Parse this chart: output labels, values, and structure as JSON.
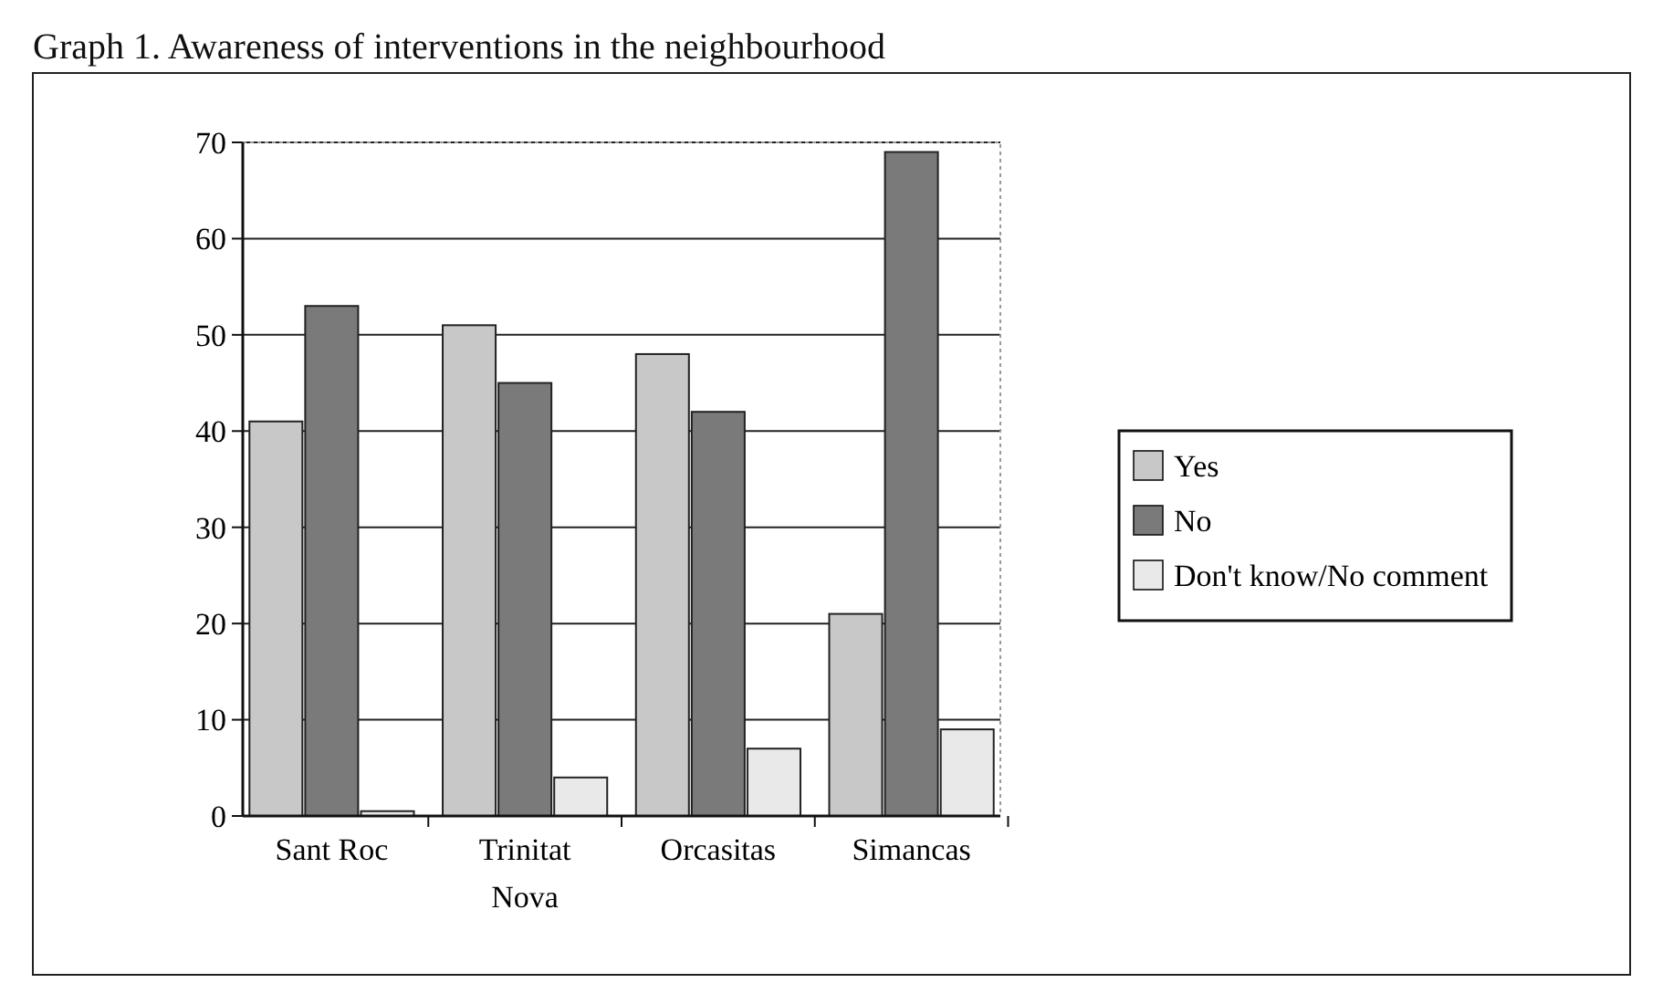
{
  "chart_data": {
    "type": "bar",
    "title": "Graph 1. Awareness of interventions in the neighbourhood",
    "categories": [
      "Sant Roc",
      "Trinitat\nNova",
      "Orcasitas",
      "Simancas"
    ],
    "series": [
      {
        "name": "Yes",
        "color": "#c8c8c8",
        "values": [
          41,
          51,
          48,
          21
        ]
      },
      {
        "name": "No",
        "color": "#7a7a7a",
        "values": [
          53,
          45,
          42,
          69
        ]
      },
      {
        "name": "Don't know/No comment",
        "color": "#e9e9e9",
        "values": [
          0.5,
          4,
          7,
          9
        ]
      }
    ],
    "ylim": [
      0,
      70
    ],
    "yticks": [
      0,
      10,
      20,
      30,
      40,
      50,
      60,
      70
    ],
    "grid": "y",
    "legend": "right"
  }
}
